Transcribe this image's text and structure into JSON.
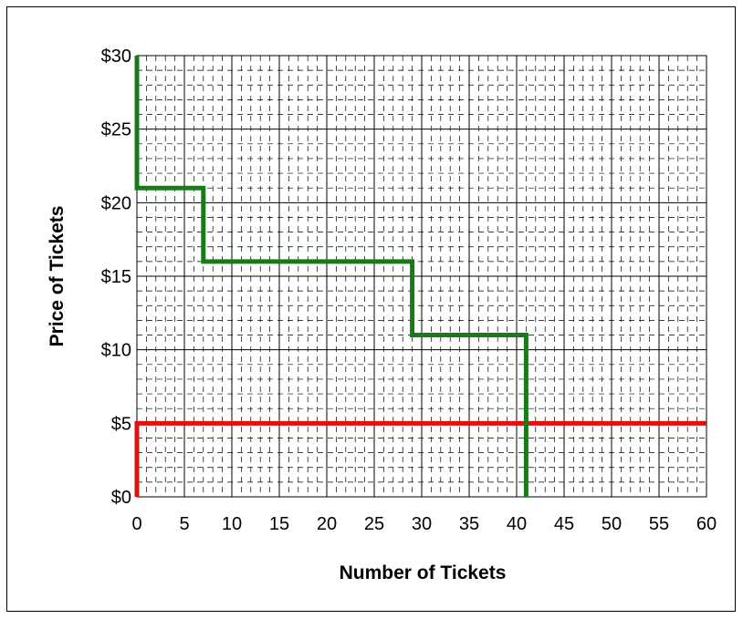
{
  "chart_data": {
    "type": "line",
    "xlabel": "Number of Tickets",
    "ylabel": "Price of Tickets",
    "xlim": [
      0,
      60
    ],
    "ylim": [
      0,
      30
    ],
    "x_ticks": [
      0,
      5,
      10,
      15,
      20,
      25,
      30,
      35,
      40,
      45,
      50,
      55,
      60
    ],
    "y_ticks": [
      0,
      5,
      10,
      15,
      20,
      25,
      30
    ],
    "x_tick_labels": [
      "0",
      "5",
      "10",
      "15",
      "20",
      "25",
      "30",
      "35",
      "40",
      "45",
      "50",
      "55",
      "60"
    ],
    "y_tick_labels": [
      "$0",
      "$5",
      "$10",
      "$15",
      "$20",
      "$25",
      "$30"
    ],
    "grid": "major gridlines with dashed minor gridlines",
    "legend": "none",
    "series": [
      {
        "color": "#1a7a1a",
        "style": "step",
        "x": [
          0,
          0,
          7,
          7,
          29,
          29,
          41,
          41
        ],
        "y": [
          30,
          21,
          21,
          16,
          16,
          11,
          11,
          0
        ]
      },
      {
        "color": "#e01010",
        "style": "step",
        "x": [
          0,
          0,
          60
        ],
        "y": [
          0,
          5,
          5
        ]
      }
    ]
  }
}
